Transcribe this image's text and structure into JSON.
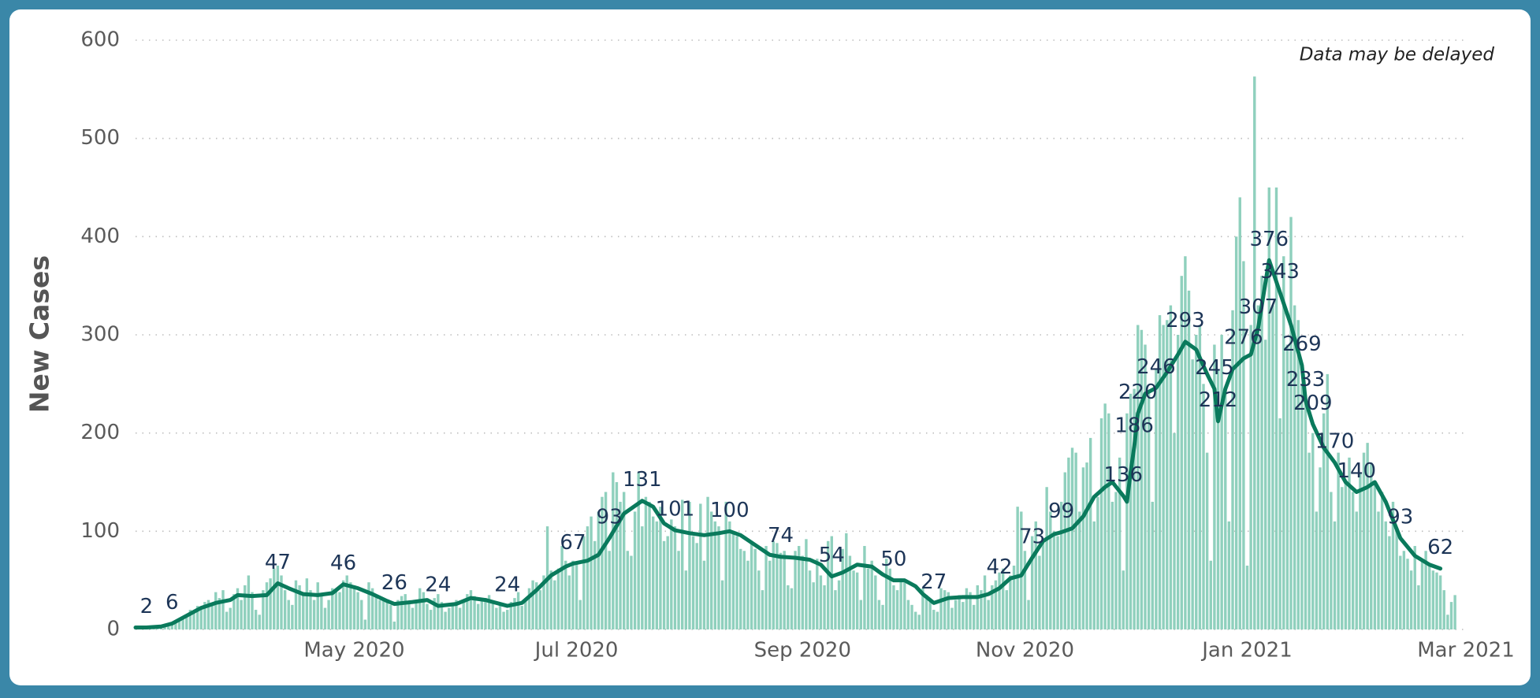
{
  "chart_data": {
    "type": "combo",
    "ylabel": "New Cases",
    "annotation": "Data may be delayed",
    "ylim": [
      0,
      600
    ],
    "yticks": [
      0,
      100,
      200,
      300,
      400,
      500,
      600
    ],
    "grid": true,
    "xlim": [
      0,
      365
    ],
    "xticks": [
      {
        "value": 60,
        "label": "May 2020"
      },
      {
        "value": 121,
        "label": "Jul 2020"
      },
      {
        "value": 183,
        "label": "Sep 2020"
      },
      {
        "value": 244,
        "label": "Nov 2020"
      },
      {
        "value": 305,
        "label": "Jan 2021"
      },
      {
        "value": 365,
        "label": "Mar 2021"
      }
    ],
    "series": [
      {
        "type": "bar",
        "color": "#8fd0bd",
        "values": [
          1,
          0,
          2,
          1,
          3,
          2,
          4,
          3,
          5,
          4,
          6,
          8,
          10,
          12,
          15,
          20,
          18,
          24,
          22,
          28,
          30,
          26,
          38,
          32,
          40,
          18,
          22,
          36,
          42,
          30,
          45,
          55,
          38,
          20,
          15,
          40,
          48,
          52,
          62,
          65,
          55,
          40,
          30,
          25,
          50,
          45,
          38,
          52,
          40,
          30,
          48,
          35,
          22,
          30,
          42,
          40,
          38,
          50,
          55,
          48,
          45,
          38,
          30,
          10,
          48,
          42,
          35,
          30,
          32,
          28,
          25,
          8,
          30,
          34,
          36,
          28,
          22,
          30,
          42,
          38,
          26,
          20,
          32,
          36,
          28,
          18,
          22,
          26,
          30,
          22,
          28,
          36,
          40,
          34,
          26,
          30,
          32,
          35,
          28,
          22,
          25,
          18,
          20,
          28,
          32,
          38,
          24,
          30,
          42,
          50,
          48,
          40,
          55,
          105,
          60,
          50,
          62,
          85,
          70,
          55,
          70,
          68,
          30,
          95,
          105,
          115,
          90,
          120,
          135,
          140,
          80,
          160,
          150,
          130,
          140,
          80,
          75,
          120,
          160,
          105,
          135,
          130,
          115,
          110,
          125,
          90,
          95,
          112,
          105,
          80,
          132,
          60,
          130,
          95,
          88,
          128,
          70,
          135,
          120,
          110,
          105,
          50,
          130,
          110,
          100,
          95,
          82,
          80,
          70,
          90,
          82,
          60,
          40,
          85,
          70,
          90,
          88,
          78,
          80,
          45,
          42,
          80,
          85,
          75,
          92,
          60,
          48,
          72,
          55,
          45,
          90,
          95,
          40,
          50,
          82,
          98,
          75,
          60,
          58,
          30,
          85,
          62,
          70,
          55,
          30,
          25,
          72,
          62,
          45,
          40,
          52,
          48,
          30,
          25,
          18,
          15,
          42,
          35,
          30,
          20,
          18,
          42,
          40,
          38,
          22,
          30,
          35,
          28,
          42,
          38,
          25,
          45,
          40,
          55,
          30,
          45,
          50,
          58,
          62,
          40,
          55,
          65,
          125,
          120,
          80,
          30,
          95,
          110,
          75,
          90,
          145,
          120,
          100,
          95,
          130,
          160,
          175,
          185,
          180,
          120,
          165,
          170,
          195,
          110,
          135,
          215,
          230,
          220,
          130,
          140,
          175,
          60,
          220,
          240,
          245,
          310,
          305,
          290,
          240,
          130,
          265,
          320,
          310,
          315,
          330,
          200,
          300,
          360,
          380,
          345,
          275,
          300,
          310,
          250,
          180,
          70,
          290,
          265,
          300,
          240,
          110,
          325,
          400,
          440,
          375,
          65,
          310,
          563,
          330,
          360,
          295,
          450,
          330,
          450,
          215,
          380,
          290,
          420,
          330,
          315,
          250,
          230,
          180,
          200,
          120,
          165,
          220,
          260,
          140,
          110,
          180,
          145,
          150,
          175,
          140,
          120,
          160,
          180,
          190,
          170,
          150,
          120,
          140,
          110,
          95,
          130,
          100,
          75,
          80,
          72,
          60,
          85,
          45,
          70,
          80,
          65,
          60,
          58,
          55,
          40,
          15,
          28,
          35
        ]
      },
      {
        "type": "line",
        "color": "#0a7a5c",
        "x": [
          0,
          3,
          7,
          10,
          14,
          18,
          22,
          26,
          28,
          32,
          36,
          39,
          42,
          46,
          50,
          54,
          57,
          61,
          65,
          69,
          71,
          76,
          80,
          83,
          88,
          92,
          96,
          100,
          102,
          106,
          110,
          114,
          118,
          120,
          124,
          127,
          130,
          134,
          139,
          142,
          145,
          148,
          152,
          156,
          160,
          163,
          166,
          170,
          174,
          177,
          181,
          185,
          188,
          191,
          194,
          198,
          202,
          205,
          208,
          211,
          214,
          216,
          219,
          223,
          227,
          231,
          234,
          237,
          240,
          243,
          246,
          249,
          252,
          254,
          257,
          260,
          263,
          266,
          268,
          271,
          272,
          273,
          274,
          275,
          277,
          280,
          283,
          286,
          288,
          291,
          294,
          296,
          297,
          299,
          301,
          304,
          306,
          308,
          311,
          314,
          317,
          320,
          321,
          323,
          326,
          329,
          332,
          335,
          338,
          340,
          343,
          347,
          351,
          355,
          358
        ],
        "values": [
          2,
          2,
          3,
          6,
          14,
          22,
          27,
          30,
          35,
          34,
          35,
          47,
          42,
          36,
          35,
          37,
          46,
          42,
          36,
          29,
          26,
          28,
          30,
          24,
          26,
          32,
          30,
          26,
          24,
          27,
          40,
          55,
          64,
          67,
          70,
          76,
          93,
          118,
          131,
          125,
          108,
          101,
          98,
          96,
          98,
          100,
          96,
          86,
          76,
          74,
          73,
          71,
          66,
          54,
          58,
          66,
          64,
          56,
          50,
          50,
          44,
          36,
          27,
          32,
          33,
          33,
          36,
          42,
          52,
          55,
          73,
          90,
          97,
          99,
          103,
          115,
          135,
          145,
          150,
          136,
          130,
          160,
          186,
          220,
          240,
          246,
          262,
          280,
          293,
          285,
          260,
          245,
          212,
          245,
          265,
          276,
          280,
          307,
          376,
          343,
          310,
          269,
          233,
          209,
          185,
          170,
          150,
          140,
          145,
          150,
          130,
          93,
          75,
          66,
          62
        ],
        "value_labels": [
          null,
          "2",
          null,
          "6",
          null,
          null,
          null,
          null,
          null,
          null,
          null,
          "47",
          null,
          null,
          null,
          null,
          "46",
          null,
          null,
          null,
          "26",
          null,
          null,
          "24",
          null,
          null,
          null,
          null,
          "24",
          null,
          null,
          null,
          null,
          "67",
          null,
          null,
          "93",
          null,
          "131",
          null,
          null,
          "101",
          null,
          null,
          null,
          "100",
          null,
          null,
          null,
          "74",
          null,
          null,
          null,
          "54",
          null,
          null,
          null,
          null,
          "50",
          null,
          null,
          null,
          "27",
          null,
          null,
          null,
          null,
          "42",
          null,
          null,
          "73",
          null,
          null,
          "99",
          null,
          null,
          null,
          null,
          null,
          "136",
          null,
          null,
          "186",
          "220",
          null,
          "246",
          null,
          null,
          "293",
          null,
          null,
          "245",
          "212",
          null,
          null,
          "276",
          null,
          "307",
          "376",
          "343",
          null,
          "269",
          "233",
          "209",
          null,
          "170",
          null,
          "140",
          null,
          null,
          null,
          "93",
          null,
          null,
          "62"
        ]
      }
    ]
  }
}
